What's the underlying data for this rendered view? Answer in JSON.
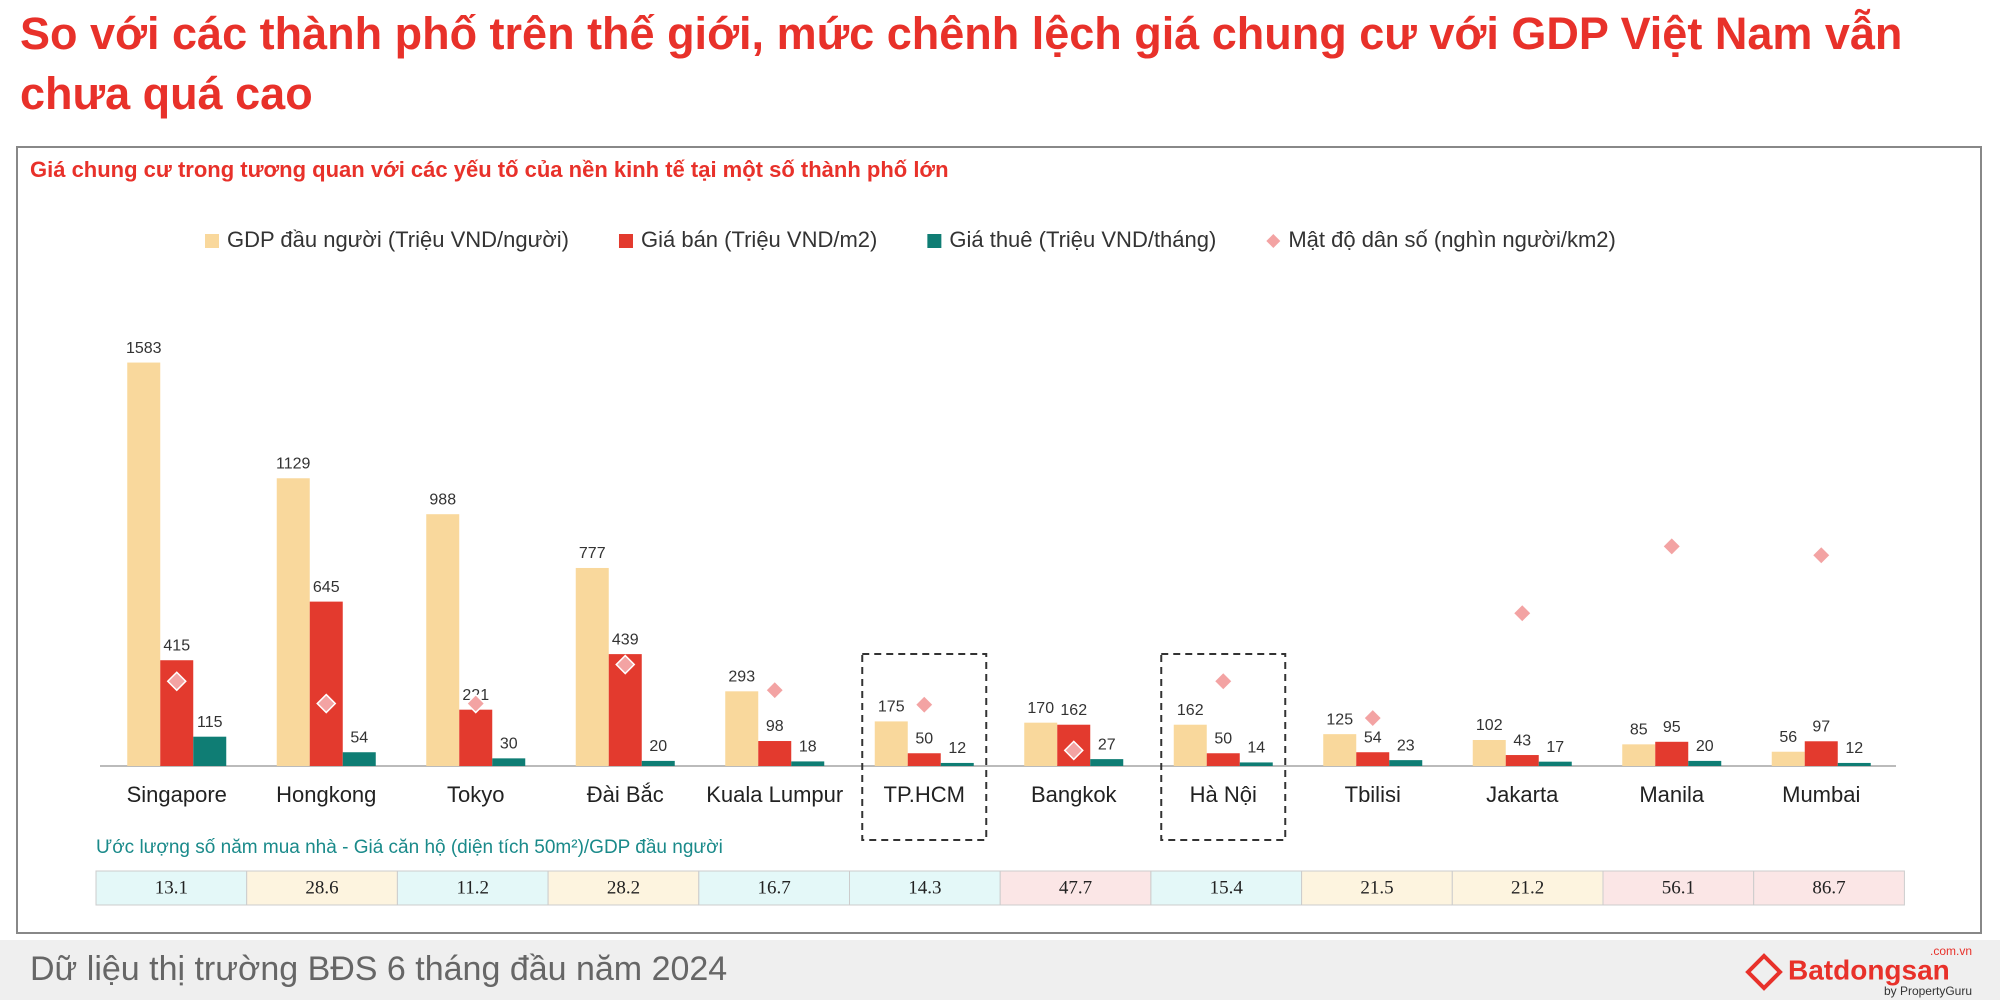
{
  "page": {
    "title": "So với các thành phố trên thế giới, mức chênh lệch giá chung cư với GDP Việt Nam vẫn chưa quá cao",
    "footer": "Dữ liệu thị trường BĐS 6 tháng đầu năm 2024",
    "logo": {
      "name": "Batdongsan",
      "domain": ".com.vn",
      "byline": "by PropertyGuru"
    }
  },
  "chart_data": {
    "type": "bar",
    "title": "Giá chung cư trong tương quan với các yếu tố của nền kinh tế tại một số thành phố lớn",
    "categories": [
      "Singapore",
      "Hongkong",
      "Tokyo",
      "Đài Bắc",
      "Kuala Lumpur",
      "TP.HCM",
      "Bangkok",
      "Hà Nội",
      "Tbilisi",
      "Jakarta",
      "Manila",
      "Mumbai"
    ],
    "series": [
      {
        "name": "GDP đầu người (Triệu VND/người)",
        "color": "#f9d89c",
        "labels": true,
        "values": [
          1583,
          1129,
          988,
          777,
          293,
          175,
          170,
          162,
          125,
          102,
          85,
          56
        ]
      },
      {
        "name": "Giá bán (Triệu VND/m2)",
        "color": "#e33a2e",
        "labels": true,
        "values": [
          415,
          645,
          221,
          439,
          98,
          50,
          162,
          50,
          54,
          43,
          95,
          97
        ]
      },
      {
        "name": "Giá thuê (Triệu VND/tháng)",
        "color": "#0f7d74",
        "labels": true,
        "values": [
          115,
          54,
          30,
          20,
          18,
          12,
          27,
          14,
          23,
          17,
          20,
          12
        ]
      },
      {
        "name": "Mật độ dân số (nghìn người/km2)",
        "color": "#f3a3a3",
        "labels": false,
        "marker": "diamond",
        "axis": "y2",
        "values": [
          7.6,
          5.6,
          5.6,
          9.1,
          6.8,
          5.5,
          1.4,
          7.6,
          4.3,
          13.7,
          19.7,
          18.9
        ]
      }
    ],
    "ylim": [
      0,
      1750
    ],
    "y2lim": [
      0,
      40
    ],
    "legend": "top",
    "highlight_indices": [
      5,
      7
    ],
    "ratio_note": "Ước lượng số năm mua nhà - Giá căn hộ (diện tích 50m²)/GDP đầu người",
    "ratios": [
      13.1,
      28.6,
      11.2,
      28.2,
      16.7,
      14.3,
      47.7,
      15.4,
      21.5,
      21.2,
      56.1,
      86.7
    ],
    "ratio_colors": [
      "#e4f8f8",
      "#fdf4df",
      "#e4f8f8",
      "#fdf4df",
      "#e4f8f8",
      "#e4f8f8",
      "#fbe6e6",
      "#e4f8f8",
      "#fdf4df",
      "#fdf4df",
      "#fbe6e6",
      "#fbe6e6"
    ]
  }
}
